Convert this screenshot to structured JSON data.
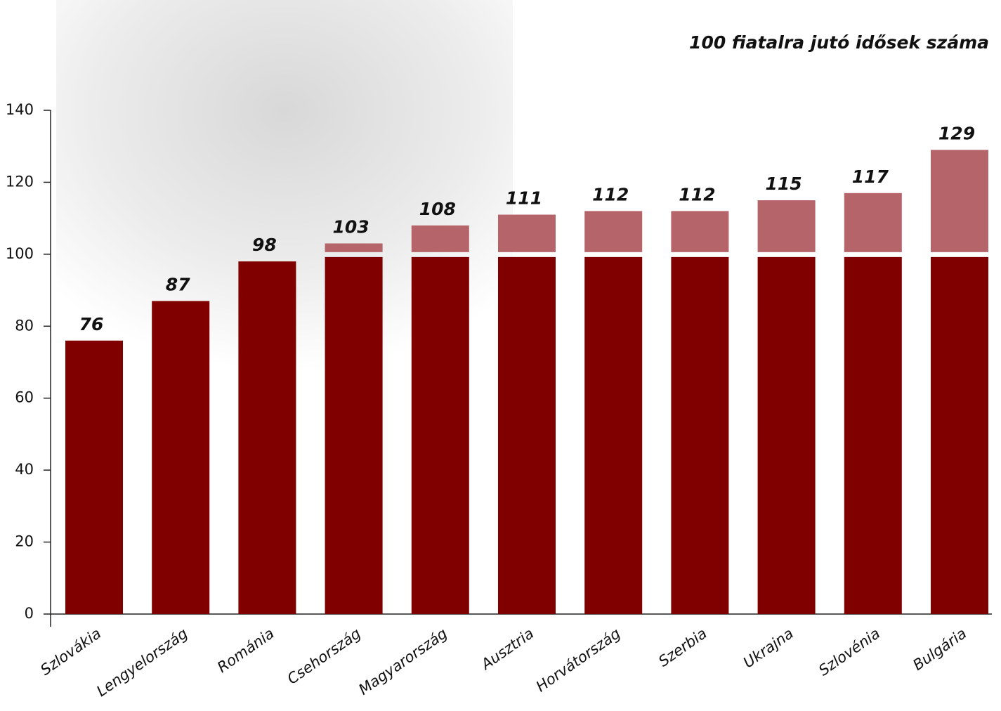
{
  "chart_data": {
    "type": "bar",
    "title": "100 fiatalra jutó idősek száma",
    "categories": [
      "Szlovákia",
      "Lengyelország",
      "Románia",
      "Csehország",
      "Magyarország",
      "Ausztria",
      "Horvátország",
      "Szerbia",
      "Ukrajna",
      "Szlovénia",
      "Bulgária"
    ],
    "values": [
      76,
      87,
      98,
      103,
      108,
      111,
      112,
      112,
      115,
      117,
      129
    ],
    "color": "#800000",
    "above_color": "#b5646a",
    "threshold": 100,
    "ylim": [
      0,
      140
    ],
    "yticks": [
      0,
      20,
      40,
      60,
      80,
      100,
      120,
      140
    ],
    "grid": false
  }
}
